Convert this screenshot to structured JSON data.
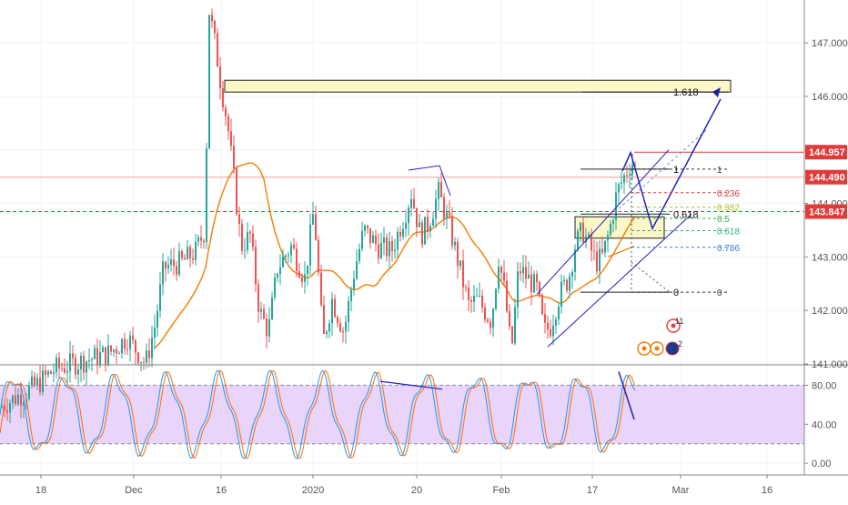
{
  "chart_data": {
    "type": "candlestick",
    "main": {
      "price_axis": {
        "ticks": [
          "147.000",
          "146.000",
          "145.000",
          "144.000",
          "143.000",
          "142.000",
          "141.000"
        ],
        "ylim": [
          141.0,
          147.8
        ]
      },
      "price_labels": [
        {
          "text": "144.957",
          "value": 144.957,
          "color": "#e03b3b"
        },
        {
          "text": "144.490",
          "value": 144.49,
          "color": "#e03b3b"
        },
        {
          "text": "143.847",
          "value": 143.847,
          "color": "#e03b3b"
        }
      ],
      "fib_levels": [
        {
          "label": "1",
          "value": 144.64,
          "color": "#333333"
        },
        {
          "label": "0.236",
          "value": 144.2,
          "color": "#d93a3a"
        },
        {
          "label": "0.382",
          "value": 143.93,
          "color": "#b7c21c"
        },
        {
          "label": "0.5",
          "value": 143.72,
          "color": "#3fae49"
        },
        {
          "label": "0.618",
          "value": 143.49,
          "color": "#29b08c"
        },
        {
          "label": "0.786",
          "value": 143.18,
          "color": "#3a7bd5"
        },
        {
          "label": "0",
          "value": 142.34,
          "color": "#333333"
        }
      ],
      "fib_box_labels": [
        {
          "label": "0.618",
          "value": 143.8
        },
        {
          "label": "1",
          "value": 142.34
        }
      ],
      "extension": {
        "label": "1.618",
        "value": 146.08
      },
      "event_icons": [
        {
          "label": "11"
        },
        {
          "label": "2"
        }
      ]
    },
    "oscillator": {
      "ticks": [
        "80.00",
        "40.00",
        "0.00"
      ],
      "ylim": [
        -12,
        100
      ],
      "band": [
        20,
        80
      ]
    },
    "time_axis": {
      "ticks": [
        "18",
        "Dec",
        "16",
        "2020",
        "20",
        "Feb",
        "17",
        "Mar",
        "16"
      ]
    },
    "colors": {
      "up": "#26a69a",
      "down": "#ef5350",
      "ma": "#f57c00",
      "drawing": "#1f1fbf",
      "zone_fill": "#fbf7c6",
      "band_fill": "#e9d5fa"
    }
  }
}
